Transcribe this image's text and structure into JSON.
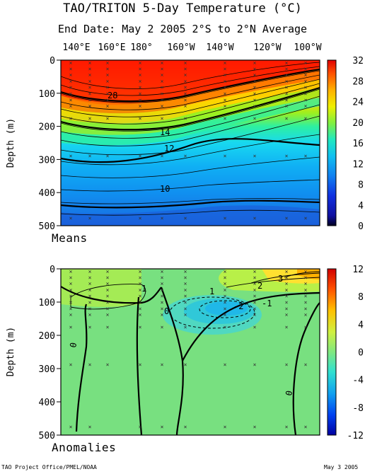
{
  "title": "TAO/TRITON 5-Day Temperature (°C)",
  "subtitle": "End Date: May 2 2005   2°S to 2°N Average",
  "footer_left": "TAO Project Office/PMEL/NOAA",
  "footer_right": "May  3 2005",
  "chart_data": [
    {
      "type": "heatmap",
      "panel_label": "Means",
      "x_tick_labels": [
        "140°E",
        "160°E",
        "180°",
        "160°W",
        "140°W",
        "120°W",
        "100°W"
      ],
      "ylabel": "Depth (m)",
      "y_ticks": [
        0,
        100,
        200,
        300,
        400,
        500
      ],
      "ylim": [
        500,
        0
      ],
      "colorbar_ticks": [
        0,
        4,
        8,
        12,
        16,
        20,
        24,
        28,
        32
      ],
      "colorbar_range": [
        0,
        32
      ],
      "contour_labels": [
        "28",
        "14",
        "12",
        "10"
      ],
      "thermocline_depth_20C": [
        {
          "lon": "140°E",
          "depth": 175
        },
        {
          "lon": "160°E",
          "depth": 185
        },
        {
          "lon": "180°",
          "depth": 180
        },
        {
          "lon": "160°W",
          "depth": 160
        },
        {
          "lon": "140°W",
          "depth": 125
        },
        {
          "lon": "120°W",
          "depth": 95
        },
        {
          "lon": "100°W",
          "depth": 65
        }
      ]
    },
    {
      "type": "heatmap",
      "panel_label": "Anomalies",
      "x_tick_labels": [
        "140°E",
        "160°E",
        "180°",
        "160°W",
        "140°W",
        "120°W",
        "100°W"
      ],
      "ylabel": "Depth (m)",
      "y_ticks": [
        0,
        100,
        200,
        300,
        400,
        500
      ],
      "ylim": [
        500,
        0
      ],
      "colorbar_ticks": [
        -12,
        -8,
        -4,
        0,
        4,
        8,
        12
      ],
      "colorbar_range": [
        -12,
        12
      ],
      "contour_labels": [
        "3",
        "2",
        "1",
        "-1",
        "-2",
        "0",
        "1",
        "0",
        "0"
      ]
    }
  ]
}
